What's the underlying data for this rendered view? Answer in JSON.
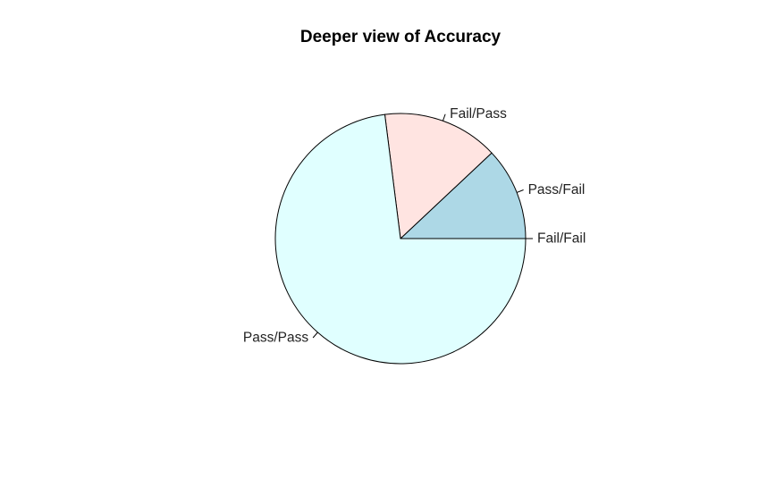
{
  "chart_data": {
    "type": "pie",
    "title": "Deeper view of Accuracy",
    "slices": [
      {
        "label": "Fail/Fail",
        "value": 0.0,
        "color": "#add8e6"
      },
      {
        "label": "Pass/Fail",
        "value": 12.0,
        "color": "#add8e6"
      },
      {
        "label": "Fail/Pass",
        "value": 15.0,
        "color": "#ffe4e1"
      },
      {
        "label": "Pass/Pass",
        "value": 73.0,
        "color": "#e0ffff"
      }
    ],
    "start_angle_deg": 0,
    "direction": "counterclockwise"
  }
}
